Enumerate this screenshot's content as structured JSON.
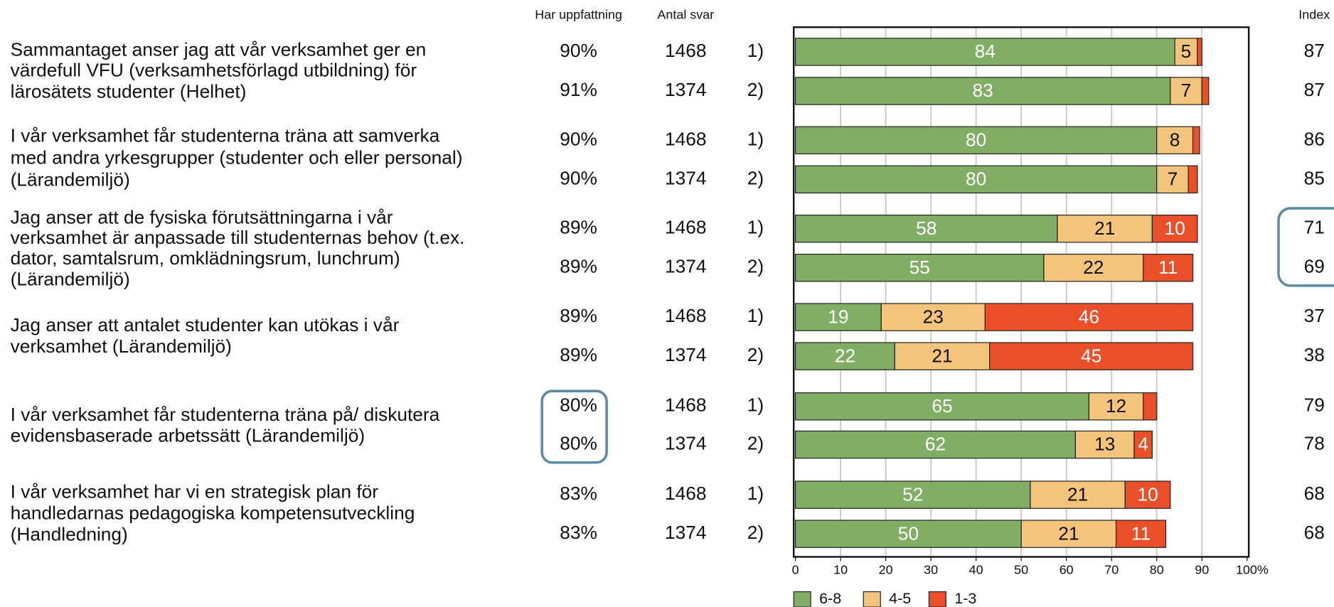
{
  "chart_data": {
    "type": "bar",
    "orientation": "horizontal",
    "stacked": true,
    "column_headers": [
      "Har uppfattning",
      "Antal svar",
      "Index"
    ],
    "questions": [
      [
        "Sammantaget anser jag att vår verksamhet ger en",
        "värdefull VFU (verksamhetsförlagd utbildning) för",
        "lärosätets studenter (Helhet)"
      ],
      [
        "I vår verksamhet får studenterna träna att samverka",
        "med andra yrkesgrupper (studenter och eller personal)",
        "(Lärandemiljö)"
      ],
      [
        "Jag anser att de fysiska förutsättningarna i vår",
        "verksamhet är anpassade till studenternas behov (t.ex.",
        "dator, samtalsrum, omklädningsrum, lunchrum)",
        "(Lärandemiljö)"
      ],
      [
        "Jag anser att antalet studenter kan utökas i vår",
        "verksamhet (Lärandemiljö)"
      ],
      [
        "I vår verksamhet får studenterna träna på/ diskutera",
        "evidensbaserade arbetssätt (Lärandemiljö)"
      ],
      [
        "I vår verksamhet har vi en strategisk plan för",
        "handledarnas pedagogiska kompetensutveckling",
        "(Handledning)"
      ]
    ],
    "categories": [
      "1)",
      "2)",
      "1)",
      "2)",
      "1)",
      "2)",
      "1)",
      "2)",
      "1)",
      "2)",
      "1)",
      "2)"
    ],
    "har_uppfattning": [
      "90%",
      "91%",
      "90%",
      "90%",
      "89%",
      "89%",
      "89%",
      "89%",
      "80%",
      "80%",
      "83%",
      "83%"
    ],
    "antal_svar": [
      1468,
      1374,
      1468,
      1374,
      1468,
      1374,
      1468,
      1374,
      1468,
      1374,
      1468,
      1374
    ],
    "index": [
      87,
      87,
      86,
      85,
      71,
      69,
      37,
      38,
      79,
      78,
      68,
      68
    ],
    "series": [
      {
        "name": "6-8",
        "color": "#82ad65",
        "label_color": "#ffffff",
        "values": [
          84,
          83,
          80,
          80,
          58,
          55,
          19,
          22,
          65,
          62,
          52,
          50
        ]
      },
      {
        "name": "4-5",
        "color": "#f3c47c",
        "label_color": "#111111",
        "values": [
          5,
          7,
          8,
          7,
          21,
          22,
          23,
          21,
          12,
          13,
          21,
          21
        ]
      },
      {
        "name": "1-3",
        "color": "#e9502a",
        "label_color": "#ffffff",
        "values": [
          1,
          1.5,
          1.5,
          2,
          10,
          11,
          46,
          45,
          3,
          4,
          10,
          11
        ],
        "value_labels": [
          null,
          null,
          null,
          null,
          "10",
          "11",
          "46",
          "45",
          null,
          "4",
          "10",
          "11"
        ]
      }
    ],
    "xlim": [
      0,
      100
    ],
    "xticks": [
      0,
      10,
      20,
      30,
      40,
      50,
      60,
      70,
      80,
      90,
      {
        "value": 100,
        "label": "100%"
      }
    ],
    "grid": true
  }
}
